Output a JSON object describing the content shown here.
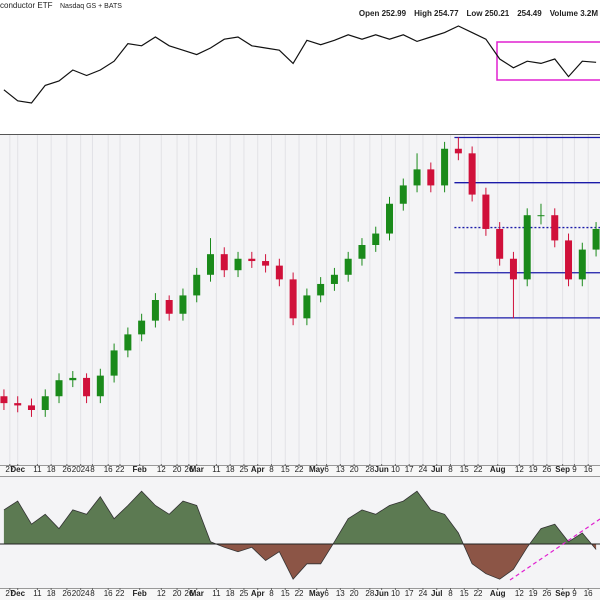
{
  "header": {
    "title": "conductor ETF",
    "exchange": "Nasdaq GS + BATS",
    "quote": [
      "Open 252.99",
      "High 254.77",
      "Low 250.21",
      "254.49",
      "Volume 3.2M"
    ]
  },
  "chart_data": [
    {
      "type": "line",
      "color": "#111111",
      "xlim": [
        "2023-11-22",
        "2024-09-22"
      ],
      "ylim": [
        0,
        100
      ],
      "x": [
        "2023-11-24",
        "2023-12-01",
        "2023-12-08",
        "2023-12-15",
        "2023-12-22",
        "2023-12-29",
        "2024-01-05",
        "2024-01-12",
        "2024-01-19",
        "2024-01-26",
        "2024-02-02",
        "2024-02-09",
        "2024-02-16",
        "2024-02-23",
        "2024-03-01",
        "2024-03-08",
        "2024-03-15",
        "2024-03-22",
        "2024-03-29",
        "2024-04-05",
        "2024-04-12",
        "2024-04-19",
        "2024-04-26",
        "2024-05-03",
        "2024-05-10",
        "2024-05-17",
        "2024-05-24",
        "2024-05-31",
        "2024-06-07",
        "2024-06-14",
        "2024-06-21",
        "2024-06-28",
        "2024-07-05",
        "2024-07-12",
        "2024-07-19",
        "2024-07-26",
        "2024-08-02",
        "2024-08-09",
        "2024-08-16",
        "2024-08-23",
        "2024-08-30",
        "2024-09-06",
        "2024-09-13",
        "2024-09-20"
      ],
      "values": [
        32,
        22,
        20,
        36,
        40,
        50,
        45,
        50,
        58,
        74,
        72,
        80,
        72,
        68,
        64,
        70,
        78,
        80,
        72,
        70,
        68,
        56,
        77,
        73,
        77,
        82,
        78,
        82,
        78,
        82,
        76,
        80,
        84,
        90,
        84,
        78,
        60,
        52,
        58,
        56,
        60,
        44,
        58,
        57
      ]
    },
    {
      "type": "candlestick",
      "up_color": "#1a8a1a",
      "down_color": "#d0103a",
      "xlim": [
        "2023-11-22",
        "2024-09-22"
      ],
      "ylim": [
        141,
        285
      ],
      "grid": true,
      "x": [
        "2023-11-24",
        "2023-12-01",
        "2023-12-08",
        "2023-12-15",
        "2023-12-22",
        "2023-12-29",
        "2024-01-05",
        "2024-01-12",
        "2024-01-19",
        "2024-01-26",
        "2024-02-02",
        "2024-02-09",
        "2024-02-16",
        "2024-02-23",
        "2024-03-01",
        "2024-03-08",
        "2024-03-15",
        "2024-03-22",
        "2024-03-29",
        "2024-04-05",
        "2024-04-12",
        "2024-04-19",
        "2024-04-26",
        "2024-05-03",
        "2024-05-10",
        "2024-05-17",
        "2024-05-24",
        "2024-05-31",
        "2024-06-07",
        "2024-06-14",
        "2024-06-21",
        "2024-06-28",
        "2024-07-05",
        "2024-07-12",
        "2024-07-19",
        "2024-07-26",
        "2024-08-02",
        "2024-08-09",
        "2024-08-16",
        "2024-08-23",
        "2024-08-30",
        "2024-09-06",
        "2024-09-13",
        "2024-09-20"
      ],
      "open": [
        171,
        168,
        167,
        165,
        171,
        178,
        179,
        171,
        180,
        191,
        198,
        204,
        213,
        207,
        215,
        224,
        233,
        226,
        231,
        230,
        228,
        222,
        205,
        215,
        220,
        224,
        231,
        237,
        242,
        255,
        263,
        270,
        263,
        279,
        277,
        259,
        244,
        231,
        222,
        250,
        250,
        239,
        222,
        235
      ],
      "high": [
        174,
        171,
        170,
        174,
        181,
        182,
        181,
        183,
        194,
        201,
        207,
        216,
        215,
        218,
        227,
        240,
        236,
        234,
        234,
        233,
        231,
        225,
        218,
        223,
        227,
        234,
        240,
        245,
        258,
        266,
        277,
        273,
        282,
        284,
        280,
        262,
        247,
        234,
        253,
        255,
        253,
        242,
        238,
        247
      ],
      "low": [
        165,
        164,
        162,
        162,
        168,
        175,
        168,
        168,
        177,
        188,
        195,
        201,
        204,
        204,
        212,
        221,
        223,
        223,
        227,
        225,
        219,
        202,
        202,
        212,
        217,
        221,
        228,
        234,
        239,
        252,
        260,
        260,
        260,
        274,
        256,
        241,
        228,
        205,
        219,
        246,
        236,
        219,
        219,
        232
      ],
      "close": [
        168,
        167,
        165,
        171,
        178,
        179,
        171,
        180,
        191,
        198,
        204,
        213,
        207,
        215,
        224,
        233,
        226,
        231,
        230,
        228,
        222,
        205,
        215,
        220,
        224,
        231,
        237,
        242,
        255,
        263,
        270,
        263,
        279,
        277,
        259,
        244,
        231,
        222,
        250,
        250,
        239,
        222,
        235,
        244
      ],
      "levels": [
        283.9,
        264.2,
        244.6,
        224.9,
        205.2
      ],
      "level_dashed": [
        false,
        false,
        true,
        false,
        false
      ],
      "levels_from": "2024-07-10",
      "level_color": "#1a1aa8",
      "xticks": [
        {
          "value": "2023-11-27",
          "label": "27"
        },
        {
          "value": "2023-12-01",
          "label": "Dec"
        },
        {
          "value": "2023-12-11",
          "label": "11"
        },
        {
          "value": "2023-12-18",
          "label": "18"
        },
        {
          "value": "2023-12-26",
          "label": "26"
        },
        {
          "value": "2024-01-02",
          "label": "2024"
        },
        {
          "value": "2024-01-08",
          "label": "8"
        },
        {
          "value": "2024-01-16",
          "label": "16"
        },
        {
          "value": "2024-01-22",
          "label": "22"
        },
        {
          "value": "2024-02-01",
          "label": "Feb"
        },
        {
          "value": "2024-02-12",
          "label": "12"
        },
        {
          "value": "2024-02-20",
          "label": "20"
        },
        {
          "value": "2024-02-26",
          "label": "26"
        },
        {
          "value": "2024-03-01",
          "label": "Mar"
        },
        {
          "value": "2024-03-11",
          "label": "11"
        },
        {
          "value": "2024-03-18",
          "label": "18"
        },
        {
          "value": "2024-03-25",
          "label": "25"
        },
        {
          "value": "2024-04-01",
          "label": "Apr"
        },
        {
          "value": "2024-04-08",
          "label": "8"
        },
        {
          "value": "2024-04-15",
          "label": "15"
        },
        {
          "value": "2024-04-22",
          "label": "22"
        },
        {
          "value": "2024-05-01",
          "label": "May"
        },
        {
          "value": "2024-05-06",
          "label": "6"
        },
        {
          "value": "2024-05-13",
          "label": "13"
        },
        {
          "value": "2024-05-20",
          "label": "20"
        },
        {
          "value": "2024-05-28",
          "label": "28"
        },
        {
          "value": "2024-06-03",
          "label": "Jun"
        },
        {
          "value": "2024-06-10",
          "label": "10"
        },
        {
          "value": "2024-06-17",
          "label": "17"
        },
        {
          "value": "2024-06-24",
          "label": "24"
        },
        {
          "value": "2024-07-01",
          "label": "Jul"
        },
        {
          "value": "2024-07-08",
          "label": "8"
        },
        {
          "value": "2024-07-15",
          "label": "15"
        },
        {
          "value": "2024-07-22",
          "label": "22"
        },
        {
          "value": "2024-08-01",
          "label": "Aug"
        },
        {
          "value": "2024-08-12",
          "label": "12"
        },
        {
          "value": "2024-08-19",
          "label": "19"
        },
        {
          "value": "2024-08-26",
          "label": "26"
        },
        {
          "value": "2024-09-03",
          "label": "Sep"
        },
        {
          "value": "2024-09-09",
          "label": "9"
        },
        {
          "value": "2024-09-16",
          "label": "16"
        }
      ]
    },
    {
      "type": "area",
      "pos_color": "#5c7a52",
      "neg_color": "#8c5546",
      "xlim": [
        "2023-11-22",
        "2024-09-22"
      ],
      "ylim": [
        -40,
        60
      ],
      "x": [
        "2023-11-24",
        "2023-12-01",
        "2023-12-08",
        "2023-12-15",
        "2023-12-22",
        "2023-12-29",
        "2024-01-05",
        "2024-01-12",
        "2024-01-19",
        "2024-01-26",
        "2024-02-02",
        "2024-02-09",
        "2024-02-16",
        "2024-02-23",
        "2024-03-01",
        "2024-03-08",
        "2024-03-15",
        "2024-03-22",
        "2024-03-29",
        "2024-04-05",
        "2024-04-12",
        "2024-04-19",
        "2024-04-26",
        "2024-05-03",
        "2024-05-10",
        "2024-05-17",
        "2024-05-24",
        "2024-05-31",
        "2024-06-07",
        "2024-06-14",
        "2024-06-21",
        "2024-06-28",
        "2024-07-05",
        "2024-07-12",
        "2024-07-19",
        "2024-07-26",
        "2024-08-02",
        "2024-08-09",
        "2024-08-16",
        "2024-08-23",
        "2024-08-30",
        "2024-09-06",
        "2024-09-13",
        "2024-09-20"
      ],
      "values": [
        31,
        39,
        18,
        27,
        14,
        31,
        27,
        43,
        23,
        35,
        48,
        35,
        27,
        39,
        35,
        2,
        -3,
        -7,
        -3,
        -15,
        -7,
        -32,
        -18,
        -18,
        2,
        23,
        31,
        27,
        35,
        39,
        48,
        31,
        27,
        10,
        -18,
        -27,
        -32,
        -23,
        -3,
        14,
        18,
        2,
        10,
        -5
      ]
    }
  ]
}
